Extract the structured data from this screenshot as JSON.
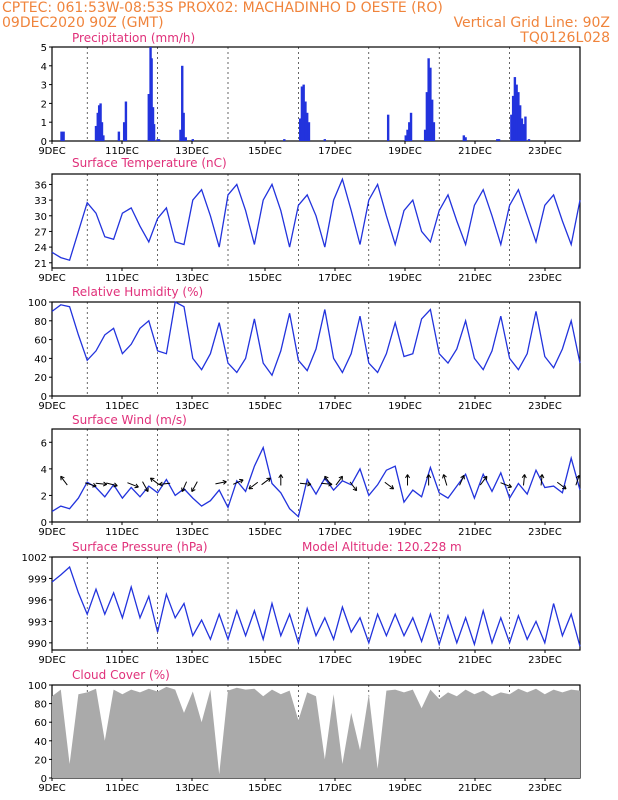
{
  "header": {
    "line1_left": "CPTEC:   061:53W-08:53S   PROX02: MACHADINHO D OESTE (RO)",
    "line2_left": "09DEC2020 90Z (GMT)",
    "line2_right": "Vertical Grid Line: 90Z",
    "line3_right": "TQ0126L028"
  },
  "colors": {
    "header": "#f0843c",
    "title": "#e0307a",
    "line": "#2233dd",
    "cloud": "#aaaaaa"
  },
  "x_axis": {
    "ticks": [
      "9DEC",
      "11DEC",
      "13DEC",
      "15DEC",
      "17DEC",
      "19DEC",
      "21DEC",
      "23DEC"
    ],
    "range_days": [
      0,
      15
    ]
  },
  "chart_data": [
    {
      "id": "precip",
      "type": "bar",
      "title": "Precipitation (mm/h)",
      "ylim": [
        0,
        5
      ],
      "yticks": [
        "0",
        "1",
        "2",
        "3",
        "4",
        "5"
      ],
      "bar_color": "#2233dd",
      "x": [
        0.27,
        0.33,
        1.25,
        1.3,
        1.34,
        1.38,
        1.42,
        1.46,
        1.9,
        2.05,
        2.1,
        2.75,
        2.8,
        2.83,
        2.87,
        2.9,
        3.0,
        3.04,
        3.65,
        3.7,
        3.74,
        3.8,
        4.0,
        6.6,
        7.05,
        7.1,
        7.15,
        7.2,
        7.25,
        7.3,
        7.75,
        9.55,
        10.05,
        10.1,
        10.15,
        10.2,
        10.6,
        10.65,
        10.7,
        10.75,
        10.8,
        10.85,
        11.7,
        11.75,
        12.65,
        12.7,
        13.05,
        13.1,
        13.15,
        13.2,
        13.25,
        13.3,
        13.35,
        13.4,
        13.45,
        13.55
      ],
      "values": [
        0.5,
        0.5,
        0.8,
        1.5,
        1.9,
        2.0,
        1.0,
        0.3,
        0.5,
        1.0,
        2.1,
        2.5,
        5.0,
        4.4,
        1.8,
        0.9,
        0.1,
        0.1,
        0.6,
        4.0,
        1.5,
        0.2,
        0.1,
        0.1,
        1.2,
        2.9,
        3.0,
        2.1,
        1.5,
        1.0,
        0.1,
        1.4,
        0.3,
        0.6,
        1.0,
        1.5,
        0.6,
        2.6,
        4.4,
        3.9,
        2.2,
        1.0,
        0.3,
        0.2,
        0.1,
        0.1,
        1.4,
        2.4,
        3.4,
        3.0,
        2.6,
        1.9,
        1.2,
        0.9,
        1.3,
        0.1
      ]
    },
    {
      "id": "temp",
      "type": "line",
      "title": "Surface Temperature (nC)",
      "ylim": [
        20,
        38
      ],
      "yticks": [
        "21",
        "24",
        "27",
        "30",
        "33",
        "36"
      ],
      "x": [
        0.0,
        0.25,
        0.5,
        0.75,
        1.0,
        1.25,
        1.5,
        1.75,
        2.0,
        2.25,
        2.5,
        2.75,
        3.0,
        3.25,
        3.5,
        3.75,
        4.0,
        4.25,
        4.5,
        4.75,
        5.0,
        5.25,
        5.5,
        5.75,
        6.0,
        6.25,
        6.5,
        6.75,
        7.0,
        7.25,
        7.5,
        7.75,
        8.0,
        8.25,
        8.5,
        8.75,
        9.0,
        9.25,
        9.5,
        9.75,
        10.0,
        10.25,
        10.5,
        10.75,
        11.0,
        11.25,
        11.5,
        11.75,
        12.0,
        12.25,
        12.5,
        12.75,
        13.0,
        13.25,
        13.5,
        13.75,
        14.0,
        14.25,
        14.5,
        14.75,
        15.0
      ],
      "values": [
        23,
        22,
        21.5,
        27,
        32.5,
        30.5,
        26,
        25.5,
        30.5,
        31.5,
        28,
        25,
        29.5,
        31.5,
        25,
        24.5,
        33,
        35,
        30,
        24,
        34,
        36,
        31,
        24.5,
        33,
        36,
        31,
        24,
        32,
        34,
        30,
        24,
        33,
        37,
        31,
        24.5,
        33,
        36,
        30,
        24.5,
        31,
        33,
        27,
        25,
        31,
        34,
        29,
        24.5,
        32,
        35,
        30,
        24.5,
        32,
        35,
        30,
        25,
        32,
        34,
        29,
        24.5,
        33
      ]
    },
    {
      "id": "rh",
      "type": "line",
      "title": "Relative Humidity (%)",
      "ylim": [
        0,
        100
      ],
      "yticks": [
        "0",
        "20",
        "40",
        "60",
        "80",
        "100"
      ],
      "x": [
        0.0,
        0.25,
        0.5,
        0.75,
        1.0,
        1.25,
        1.5,
        1.75,
        2.0,
        2.25,
        2.5,
        2.75,
        3.0,
        3.25,
        3.5,
        3.75,
        4.0,
        4.25,
        4.5,
        4.75,
        5.0,
        5.25,
        5.5,
        5.75,
        6.0,
        6.25,
        6.5,
        6.75,
        7.0,
        7.25,
        7.5,
        7.75,
        8.0,
        8.25,
        8.5,
        8.75,
        9.0,
        9.25,
        9.5,
        9.75,
        10.0,
        10.25,
        10.5,
        10.75,
        11.0,
        11.25,
        11.5,
        11.75,
        12.0,
        12.25,
        12.5,
        12.75,
        13.0,
        13.25,
        13.5,
        13.75,
        14.0,
        14.25,
        14.5,
        14.75,
        15.0
      ],
      "values": [
        90,
        97,
        95,
        65,
        38,
        48,
        65,
        72,
        45,
        55,
        72,
        80,
        48,
        45,
        100,
        95,
        40,
        28,
        45,
        78,
        35,
        25,
        40,
        82,
        35,
        22,
        48,
        88,
        38,
        27,
        50,
        92,
        40,
        25,
        45,
        85,
        35,
        25,
        45,
        78,
        42,
        45,
        82,
        92,
        45,
        35,
        50,
        80,
        40,
        28,
        48,
        85,
        40,
        28,
        45,
        90,
        42,
        30,
        50,
        80,
        35
      ]
    },
    {
      "id": "wind",
      "type": "line",
      "title": "Surface Wind (m/s)",
      "ylim": [
        0,
        7
      ],
      "yticks": [
        "0",
        "2",
        "4",
        "6"
      ],
      "x": [
        0.0,
        0.25,
        0.5,
        0.75,
        1.0,
        1.25,
        1.5,
        1.75,
        2.0,
        2.25,
        2.5,
        2.75,
        3.0,
        3.25,
        3.5,
        3.75,
        4.0,
        4.25,
        4.5,
        4.75,
        5.0,
        5.25,
        5.5,
        5.75,
        6.0,
        6.25,
        6.5,
        6.75,
        7.0,
        7.25,
        7.5,
        7.75,
        8.0,
        8.25,
        8.5,
        8.75,
        9.0,
        9.25,
        9.5,
        9.75,
        10.0,
        10.25,
        10.5,
        10.75,
        11.0,
        11.25,
        11.5,
        11.75,
        12.0,
        12.25,
        12.5,
        12.75,
        13.0,
        13.25,
        13.5,
        13.75,
        14.0,
        14.25,
        14.5,
        14.75,
        15.0
      ],
      "values": [
        0.8,
        1.2,
        1.0,
        1.8,
        3.0,
        2.6,
        1.9,
        2.8,
        1.8,
        2.6,
        1.9,
        2.7,
        2.2,
        3.2,
        2.0,
        2.5,
        1.8,
        1.2,
        1.6,
        2.4,
        1.1,
        3.1,
        2.3,
        4.2,
        5.6,
        2.9,
        2.2,
        1.0,
        0.4,
        3.2,
        2.1,
        3.3,
        2.4,
        3.1,
        2.8,
        4.0,
        2.0,
        2.8,
        3.9,
        4.2,
        1.5,
        2.4,
        1.9,
        4.1,
        2.2,
        1.8,
        2.7,
        3.6,
        1.8,
        3.6,
        2.3,
        3.7,
        1.8,
        2.9,
        2.1,
        3.9,
        2.6,
        2.7,
        2.2,
        4.8,
        2.4
      ],
      "vectors": [
        {
          "x": 0.4,
          "dx": -0.6,
          "dy": -0.8
        },
        {
          "x": 1.0,
          "dx": 1,
          "dy": 0.3
        },
        {
          "x": 1.3,
          "dx": 1,
          "dy": 0.1
        },
        {
          "x": 1.6,
          "dx": 1,
          "dy": 0.25
        },
        {
          "x": 2.2,
          "dx": 1,
          "dy": 0.4
        },
        {
          "x": 2.6,
          "dx": 0.5,
          "dy": 0.9
        },
        {
          "x": 3.0,
          "dx": -0.8,
          "dy": -0.6
        },
        {
          "x": 3.3,
          "dx": -1,
          "dy": 0.1
        },
        {
          "x": 3.8,
          "dx": -0.4,
          "dy": 0.9
        },
        {
          "x": 4.1,
          "dx": -0.5,
          "dy": 0.9
        },
        {
          "x": 4.7,
          "dx": 1,
          "dy": -0.2
        },
        {
          "x": 5.2,
          "dx": 0.9,
          "dy": -0.4
        },
        {
          "x": 5.8,
          "dx": -0.8,
          "dy": 0.6
        },
        {
          "x": 6.0,
          "dx": 0.8,
          "dy": -0.6
        },
        {
          "x": 6.5,
          "dx": 0,
          "dy": -1
        },
        {
          "x": 7.1,
          "dx": 1,
          "dy": 0.1
        },
        {
          "x": 7.7,
          "dx": 1,
          "dy": 0.1
        },
        {
          "x": 7.9,
          "dx": -0.6,
          "dy": -0.8
        },
        {
          "x": 8.1,
          "dx": 0.6,
          "dy": -0.8
        },
        {
          "x": 8.5,
          "dx": 0.6,
          "dy": 0.8
        },
        {
          "x": 9.5,
          "dx": 0.8,
          "dy": 0.6
        },
        {
          "x": 10.1,
          "dx": 0,
          "dy": -1
        },
        {
          "x": 10.7,
          "dx": 0,
          "dy": -1
        },
        {
          "x": 11.2,
          "dx": -0.3,
          "dy": -1
        },
        {
          "x": 11.6,
          "dx": 0.4,
          "dy": -0.9
        },
        {
          "x": 12.2,
          "dx": 0.6,
          "dy": -0.8
        },
        {
          "x": 12.8,
          "dx": 1,
          "dy": 0.4
        },
        {
          "x": 13.4,
          "dx": 0.1,
          "dy": -1
        },
        {
          "x": 13.9,
          "dx": 0.1,
          "dy": -1
        },
        {
          "x": 14.4,
          "dx": 0.8,
          "dy": 0.6
        },
        {
          "x": 14.9,
          "dx": 0.3,
          "dy": -0.9
        }
      ]
    },
    {
      "id": "pressure",
      "type": "line",
      "title": "Surface Pressure (hPa)",
      "annotation": "Model Altitude: 120.228 m",
      "ylim": [
        989,
        1002
      ],
      "yticks": [
        "990",
        "993",
        "996",
        "999",
        "1002"
      ],
      "x": [
        0.0,
        0.25,
        0.5,
        0.75,
        1.0,
        1.25,
        1.5,
        1.75,
        2.0,
        2.25,
        2.5,
        2.75,
        3.0,
        3.25,
        3.5,
        3.75,
        4.0,
        4.25,
        4.5,
        4.75,
        5.0,
        5.25,
        5.5,
        5.75,
        6.0,
        6.25,
        6.5,
        6.75,
        7.0,
        7.25,
        7.5,
        7.75,
        8.0,
        8.25,
        8.5,
        8.75,
        9.0,
        9.25,
        9.5,
        9.75,
        10.0,
        10.25,
        10.5,
        10.75,
        11.0,
        11.25,
        11.5,
        11.75,
        12.0,
        12.25,
        12.5,
        12.75,
        13.0,
        13.25,
        13.5,
        13.75,
        14.0,
        14.25,
        14.5,
        14.75,
        15.0
      ],
      "values": [
        998.5,
        999.5,
        1000.6,
        997,
        994,
        997.5,
        994,
        997,
        993.5,
        997.8,
        993.5,
        996.5,
        991.5,
        996.8,
        993.5,
        995.5,
        991,
        993.2,
        990.5,
        994,
        990.5,
        994.5,
        991,
        994.5,
        990.5,
        995.5,
        991,
        994,
        990,
        994.8,
        991,
        993.5,
        990.5,
        995,
        991.5,
        993.5,
        990,
        994,
        991,
        994,
        991,
        993.5,
        990.2,
        994,
        989.8,
        993.8,
        990,
        993.5,
        989.8,
        994.5,
        990,
        993.5,
        990,
        993.8,
        990.5,
        993,
        990,
        995.5,
        991,
        994,
        989.5
      ]
    },
    {
      "id": "cloud",
      "type": "area",
      "title": "Cloud Cover (%)",
      "ylim": [
        0,
        100
      ],
      "yticks": [
        "0",
        "20",
        "40",
        "60",
        "80",
        "100"
      ],
      "x": [
        0.0,
        0.25,
        0.5,
        0.75,
        1.0,
        1.25,
        1.5,
        1.75,
        2.0,
        2.25,
        2.5,
        2.75,
        3.0,
        3.25,
        3.5,
        3.75,
        4.0,
        4.25,
        4.5,
        4.75,
        5.0,
        5.25,
        5.5,
        5.75,
        6.0,
        6.25,
        6.5,
        6.75,
        7.0,
        7.25,
        7.5,
        7.75,
        8.0,
        8.25,
        8.5,
        8.75,
        9.0,
        9.25,
        9.5,
        9.75,
        10.0,
        10.25,
        10.5,
        10.75,
        11.0,
        11.25,
        11.5,
        11.75,
        12.0,
        12.25,
        12.5,
        12.75,
        13.0,
        13.25,
        13.5,
        13.75,
        14.0,
        14.25,
        14.5,
        14.75,
        15.0
      ],
      "values": [
        88,
        95,
        15,
        90,
        92,
        96,
        40,
        95,
        90,
        95,
        92,
        96,
        93,
        98,
        95,
        70,
        93,
        60,
        95,
        4,
        94,
        97,
        95,
        96,
        88,
        95,
        90,
        94,
        62,
        92,
        88,
        20,
        90,
        15,
        70,
        30,
        90,
        10,
        94,
        95,
        92,
        95,
        75,
        95,
        85,
        92,
        88,
        95,
        90,
        94,
        88,
        92,
        90,
        96,
        92,
        96,
        90,
        95,
        92,
        95,
        94
      ]
    }
  ]
}
